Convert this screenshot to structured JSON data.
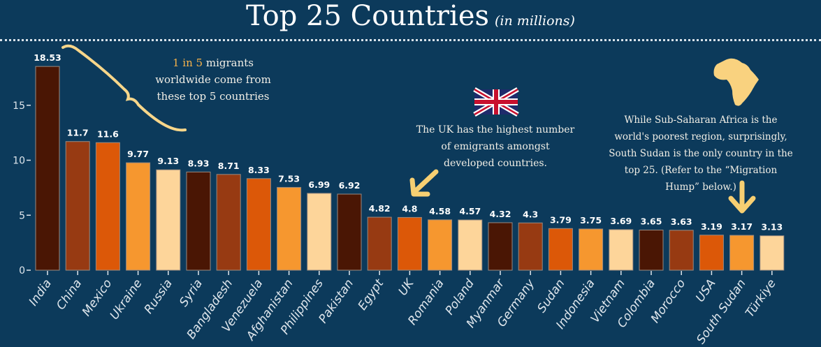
{
  "title": {
    "main": "Top 25 Countries",
    "subtitle": "(in millions)"
  },
  "annotations": {
    "top5_highlight": "1 in 5",
    "top5_rest": " migrants worldwide come from these top 5 countries",
    "uk": "The UK has the highest number of emigrants amongst developed countries.",
    "africa": "While Sub-Saharan Africa is the world's poorest region, surprisingly, South Sudan is the only country in the top 25. (Refer to the “Migration Hump” below.)"
  },
  "icons": [
    "uk-flag-icon",
    "africa-map-icon",
    "arrow-icon",
    "curly-brace-icon"
  ],
  "chart_data": {
    "type": "bar",
    "categories": [
      "India",
      "China",
      "Mexico",
      "Ukraine",
      "Russia",
      "Syria",
      "Bangladesh",
      "Venezuela",
      "Afghanistan",
      "Philippines",
      "Pakistan",
      "Egypt",
      "UK",
      "Romania",
      "Poland",
      "Myanmar",
      "Germany",
      "Sudan",
      "Indonesia",
      "Vietnam",
      "Colombia",
      "Morocco",
      "USA",
      "South Sudan",
      "Türkiye"
    ],
    "values": [
      18.53,
      11.7,
      11.6,
      9.77,
      9.13,
      8.93,
      8.71,
      8.33,
      7.53,
      6.99,
      6.92,
      4.82,
      4.8,
      4.58,
      4.57,
      4.32,
      4.3,
      3.79,
      3.75,
      3.69,
      3.65,
      3.63,
      3.19,
      3.17,
      3.13
    ],
    "data_labels": [
      "18.53",
      "11.7",
      "11.6",
      "9.77",
      "9.13",
      "8.93",
      "8.71",
      "8.33",
      "7.53",
      "6.99",
      "6.92",
      "4.82",
      "4.8",
      "4.58",
      "4.57",
      "4.32",
      "4.3",
      "3.79",
      "3.75",
      "3.69",
      "3.65",
      "3.63",
      "3.19",
      "3.17",
      "3.13"
    ],
    "yticks": [
      "0",
      "5",
      "10",
      "15"
    ],
    "ylim": [
      0,
      19
    ],
    "grid": false,
    "colors": [
      "#4a1604",
      "#973a12",
      "#dc5808",
      "#f6972f",
      "#fdd59a"
    ]
  }
}
